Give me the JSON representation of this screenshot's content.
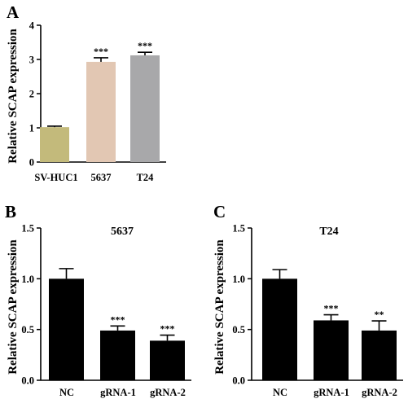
{
  "chart_data": [
    {
      "type": "bar",
      "panel": "A",
      "title": "",
      "ylabel": "Relative SCAP expression",
      "xlabel": "",
      "ylim": [
        0,
        4
      ],
      "yticks": [
        "0",
        "1",
        "2",
        "3",
        "4"
      ],
      "categories": [
        "SV-HUC1",
        "5637",
        "T24"
      ],
      "values": [
        1.02,
        2.93,
        3.12
      ],
      "errors": [
        0.03,
        0.12,
        0.09
      ],
      "significance": [
        "",
        "***",
        "***"
      ],
      "colors": [
        "#c3ba7b",
        "#e2c7b3",
        "#a8a8aa"
      ]
    },
    {
      "type": "bar",
      "panel": "B",
      "title": "5637",
      "ylabel": "Relative SCAP expression",
      "xlabel": "",
      "ylim": [
        0,
        1.5
      ],
      "yticks": [
        "0.0",
        "0.5",
        "1.0",
        "1.5"
      ],
      "categories": [
        "NC",
        "gRNA-1",
        "gRNA-2"
      ],
      "values": [
        1.0,
        0.49,
        0.39
      ],
      "errors": [
        0.1,
        0.045,
        0.055
      ],
      "significance": [
        "",
        "***",
        "***"
      ],
      "colors": [
        "#000000",
        "#000000",
        "#000000"
      ]
    },
    {
      "type": "bar",
      "panel": "C",
      "title": "T24",
      "ylabel": "Relative SCAP expression",
      "xlabel": "",
      "ylim": [
        0,
        1.5
      ],
      "yticks": [
        "0.0",
        "0.5",
        "1.0",
        "1.5"
      ],
      "categories": [
        "NC",
        "gRNA-1",
        "gRNA-2"
      ],
      "values": [
        1.0,
        0.59,
        0.49
      ],
      "errors": [
        0.09,
        0.055,
        0.095
      ],
      "significance": [
        "",
        "***",
        "**"
      ],
      "colors": [
        "#000000",
        "#000000",
        "#000000"
      ]
    }
  ]
}
